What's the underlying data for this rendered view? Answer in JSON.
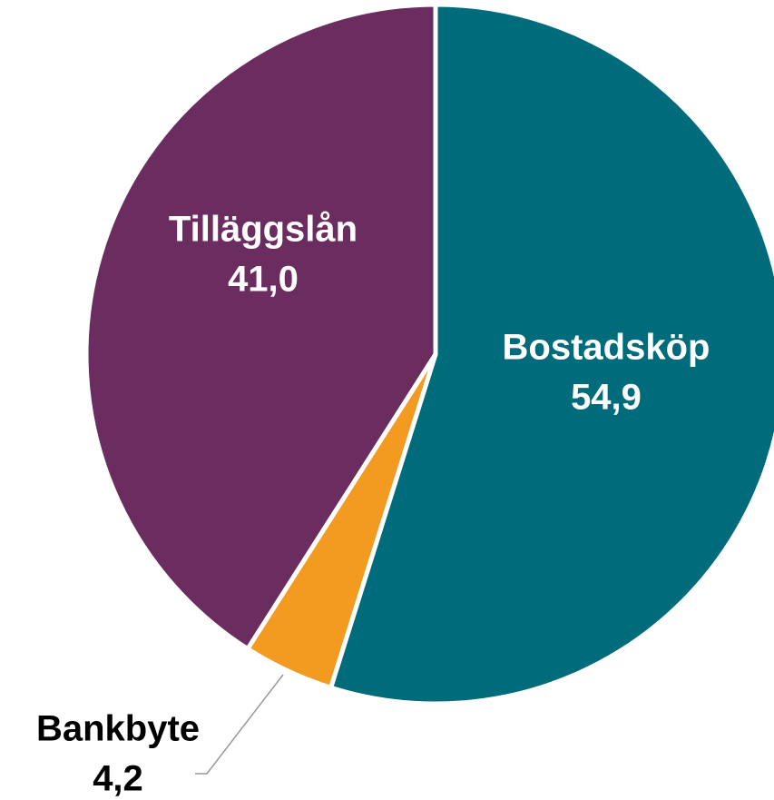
{
  "chart_data": {
    "type": "pie",
    "categories": [
      "Bostadsköp",
      "Bankbyte",
      "Tilläggslån"
    ],
    "values": [
      54.9,
      4.2,
      41.0
    ],
    "value_labels": [
      "54,9",
      "4,2",
      "41,0"
    ],
    "colors": [
      "#006b7b",
      "#f39a21",
      "#6b2c5f"
    ]
  }
}
